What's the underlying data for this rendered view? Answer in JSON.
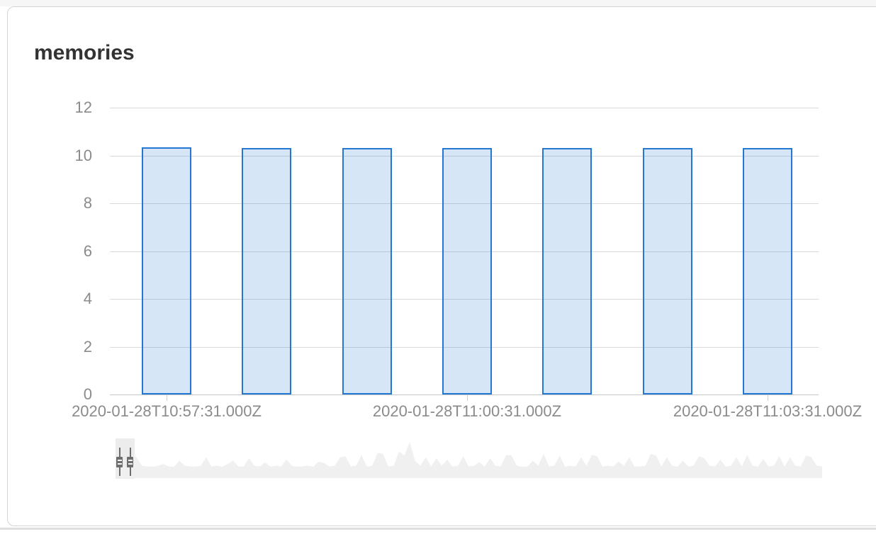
{
  "panel": {
    "title": "memories"
  },
  "colors": {
    "bar_border": "#2478d4",
    "bar_fill": "rgba(34,118,210,0.18)",
    "gridline": "#d9d9d9",
    "axis": "#c6c6c6",
    "label": "#8b8b8b",
    "title": "#333333",
    "panel_border": "#d4d4d4",
    "brush_area": "#f0f0f0",
    "brush_selection": "#ececec",
    "brush_handle": "#6e6e6e"
  },
  "chart_data": {
    "type": "bar",
    "title": "memories",
    "ylim": [
      0,
      12
    ],
    "y_ticks": [
      0,
      2,
      4,
      6,
      8,
      10,
      12
    ],
    "values": [
      10.35,
      10.3,
      10.3,
      10.3,
      10.3,
      10.3,
      10.3
    ],
    "x_tick_labels": [
      "2020-01-28T10:57:31.000Z",
      "2020-01-28T11:00:31.000Z",
      "2020-01-28T11:03:31.000Z"
    ],
    "x_tick_bar_indices": [
      0,
      3,
      6
    ],
    "grid": "on",
    "legend": "none",
    "context_brush": {
      "selection_label": "time-range brush (narrow selection at far left)",
      "series": [
        0.3,
        0.28,
        0.62,
        0.55,
        0.3,
        0.28,
        0.27,
        0.3,
        0.35,
        0.28,
        0.27,
        0.45,
        0.3,
        0.28,
        0.27,
        0.3,
        0.55,
        0.28,
        0.3,
        0.27,
        0.35,
        0.45,
        0.28,
        0.27,
        0.52,
        0.3,
        0.28,
        0.4,
        0.27,
        0.3,
        0.28,
        0.48,
        0.3,
        0.27,
        0.28,
        0.3,
        0.27,
        0.42,
        0.38,
        0.28,
        0.3,
        0.55,
        0.58,
        0.28,
        0.3,
        0.62,
        0.27,
        0.3,
        0.68,
        0.65,
        0.28,
        0.3,
        0.72,
        0.6,
        1.0,
        0.45,
        0.3,
        0.55,
        0.28,
        0.52,
        0.3,
        0.48,
        0.27,
        0.3,
        0.58,
        0.28,
        0.3,
        0.4,
        0.27,
        0.52,
        0.3,
        0.28,
        0.62,
        0.6,
        0.3,
        0.27,
        0.28,
        0.45,
        0.3,
        0.65,
        0.28,
        0.3,
        0.6,
        0.27,
        0.3,
        0.28,
        0.55,
        0.3,
        0.62,
        0.58,
        0.27,
        0.3,
        0.28,
        0.42,
        0.3,
        0.55,
        0.27,
        0.28,
        0.3,
        0.65,
        0.6,
        0.28,
        0.55,
        0.3,
        0.27,
        0.45,
        0.28,
        0.3,
        0.58,
        0.52,
        0.3,
        0.28,
        0.48,
        0.27,
        0.3,
        0.55,
        0.28,
        0.62,
        0.3,
        0.27,
        0.5,
        0.28,
        0.3,
        0.58,
        0.27,
        0.55,
        0.3,
        0.28,
        0.6,
        0.55,
        0.3,
        0.28
      ]
    }
  }
}
